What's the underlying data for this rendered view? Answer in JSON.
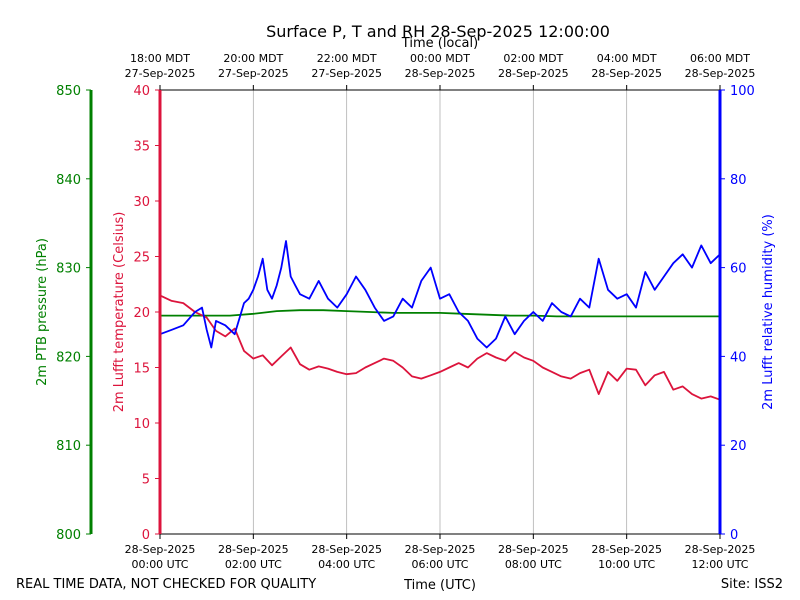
{
  "colors": {
    "pressure": "#008000",
    "temperature": "#dc143c",
    "humidity": "#0000ff",
    "grid": "#b0b0b0",
    "axis": "#000000"
  },
  "chart_data": {
    "type": "line",
    "title": "Surface P, T and RH 28-Sep-2025 12:00:00",
    "top_axis_title": "Time (local)",
    "bottom_axis_title": "Time (UTC)",
    "footer_left": "REAL TIME DATA, NOT CHECKED FOR QUALITY",
    "footer_right": "Site: ISS2",
    "x_range_hours_utc": [
      0,
      12
    ],
    "x_ticks_utc": [
      {
        "hour": 0,
        "date": "28-Sep-2025",
        "time": "00:00 UTC"
      },
      {
        "hour": 2,
        "date": "28-Sep-2025",
        "time": "02:00 UTC"
      },
      {
        "hour": 4,
        "date": "28-Sep-2025",
        "time": "04:00 UTC"
      },
      {
        "hour": 6,
        "date": "28-Sep-2025",
        "time": "06:00 UTC"
      },
      {
        "hour": 8,
        "date": "28-Sep-2025",
        "time": "08:00 UTC"
      },
      {
        "hour": 10,
        "date": "28-Sep-2025",
        "time": "10:00 UTC"
      },
      {
        "hour": 12,
        "date": "28-Sep-2025",
        "time": "12:00 UTC"
      }
    ],
    "x_ticks_local": [
      {
        "hour": 0,
        "time": "18:00 MDT",
        "date": "27-Sep-2025"
      },
      {
        "hour": 2,
        "time": "20:00 MDT",
        "date": "27-Sep-2025"
      },
      {
        "hour": 4,
        "time": "22:00 MDT",
        "date": "27-Sep-2025"
      },
      {
        "hour": 6,
        "time": "00:00 MDT",
        "date": "28-Sep-2025"
      },
      {
        "hour": 8,
        "time": "02:00 MDT",
        "date": "28-Sep-2025"
      },
      {
        "hour": 10,
        "time": "04:00 MDT",
        "date": "28-Sep-2025"
      },
      {
        "hour": 12,
        "time": "06:00 MDT",
        "date": "28-Sep-2025"
      }
    ],
    "axes": {
      "pressure": {
        "label": "2m PTB pressure (hPa)",
        "ylim": [
          800,
          850
        ],
        "ticks": [
          800,
          810,
          820,
          830,
          840,
          850
        ]
      },
      "temperature": {
        "label": "2m Lufft temperature (Celsius)",
        "ylim": [
          0,
          40
        ],
        "ticks": [
          0,
          5,
          10,
          15,
          20,
          25,
          30,
          35,
          40
        ]
      },
      "humidity": {
        "label": "2m Lufft relative humidity (%)",
        "ylim": [
          0,
          100
        ],
        "ticks": [
          0,
          20,
          40,
          60,
          80,
          100
        ]
      }
    },
    "series": [
      {
        "name": "pressure",
        "axis": "pressure",
        "x": [
          0,
          0.5,
          1,
          1.5,
          2,
          2.5,
          3,
          3.5,
          4,
          4.5,
          5,
          5.5,
          6,
          6.5,
          7,
          7.5,
          8,
          8.5,
          9,
          9.5,
          10,
          10.5,
          11,
          11.5,
          12
        ],
        "values": [
          824.6,
          824.6,
          824.6,
          824.6,
          824.8,
          825.1,
          825.2,
          825.2,
          825.1,
          825.0,
          824.9,
          824.9,
          824.9,
          824.8,
          824.7,
          824.6,
          824.6,
          824.5,
          824.5,
          824.5,
          824.5,
          824.5,
          824.5,
          824.5,
          824.5
        ]
      },
      {
        "name": "temperature",
        "axis": "temperature",
        "x": [
          0,
          0.25,
          0.5,
          0.75,
          1,
          1.2,
          1.4,
          1.6,
          1.8,
          2,
          2.2,
          2.4,
          2.6,
          2.8,
          3,
          3.2,
          3.4,
          3.6,
          3.8,
          4,
          4.2,
          4.4,
          4.6,
          4.8,
          5,
          5.2,
          5.4,
          5.6,
          5.8,
          6,
          6.2,
          6.4,
          6.6,
          6.8,
          7,
          7.2,
          7.4,
          7.6,
          7.8,
          8,
          8.2,
          8.4,
          8.6,
          8.8,
          9,
          9.2,
          9.4,
          9.6,
          9.8,
          10,
          10.2,
          10.4,
          10.6,
          10.8,
          11,
          11.2,
          11.4,
          11.6,
          11.8,
          12
        ],
        "values": [
          21.5,
          21.0,
          20.8,
          20.0,
          19.5,
          18.3,
          17.8,
          18.5,
          16.5,
          15.8,
          16.1,
          15.2,
          16.0,
          16.8,
          15.3,
          14.8,
          15.1,
          14.9,
          14.6,
          14.4,
          14.5,
          15.0,
          15.4,
          15.8,
          15.6,
          15.0,
          14.2,
          14.0,
          14.3,
          14.6,
          15.0,
          15.4,
          15.0,
          15.8,
          16.3,
          15.9,
          15.6,
          16.4,
          15.9,
          15.6,
          15.0,
          14.6,
          14.2,
          14.0,
          14.5,
          14.8,
          12.6,
          14.6,
          13.8,
          14.9,
          14.8,
          13.4,
          14.3,
          14.6,
          13.0,
          13.3,
          12.6,
          12.2,
          12.4,
          12.1
        ]
      },
      {
        "name": "humidity",
        "axis": "humidity",
        "x": [
          0,
          0.25,
          0.5,
          0.75,
          0.9,
          1,
          1.1,
          1.2,
          1.4,
          1.6,
          1.8,
          1.9,
          2,
          2.1,
          2.2,
          2.3,
          2.4,
          2.5,
          2.6,
          2.7,
          2.8,
          2.9,
          3,
          3.2,
          3.4,
          3.6,
          3.8,
          4,
          4.2,
          4.4,
          4.6,
          4.8,
          5,
          5.2,
          5.4,
          5.6,
          5.8,
          6,
          6.2,
          6.4,
          6.6,
          6.8,
          7,
          7.2,
          7.4,
          7.6,
          7.8,
          8,
          8.2,
          8.4,
          8.6,
          8.8,
          9,
          9.2,
          9.4,
          9.6,
          9.8,
          10,
          10.2,
          10.4,
          10.6,
          10.8,
          11,
          11.2,
          11.4,
          11.6,
          11.8,
          12
        ],
        "values": [
          45,
          46,
          47,
          50,
          51,
          46,
          42,
          48,
          47,
          45,
          52,
          53,
          55,
          58,
          62,
          55,
          53,
          56,
          60,
          66,
          58,
          56,
          54,
          53,
          57,
          53,
          51,
          54,
          58,
          55,
          51,
          48,
          49,
          53,
          51,
          57,
          60,
          53,
          54,
          50,
          48,
          44,
          42,
          44,
          49,
          45,
          48,
          50,
          48,
          52,
          50,
          49,
          53,
          51,
          62,
          55,
          53,
          54,
          51,
          59,
          55,
          58,
          61,
          63,
          60,
          65,
          61,
          63
        ]
      }
    ]
  }
}
